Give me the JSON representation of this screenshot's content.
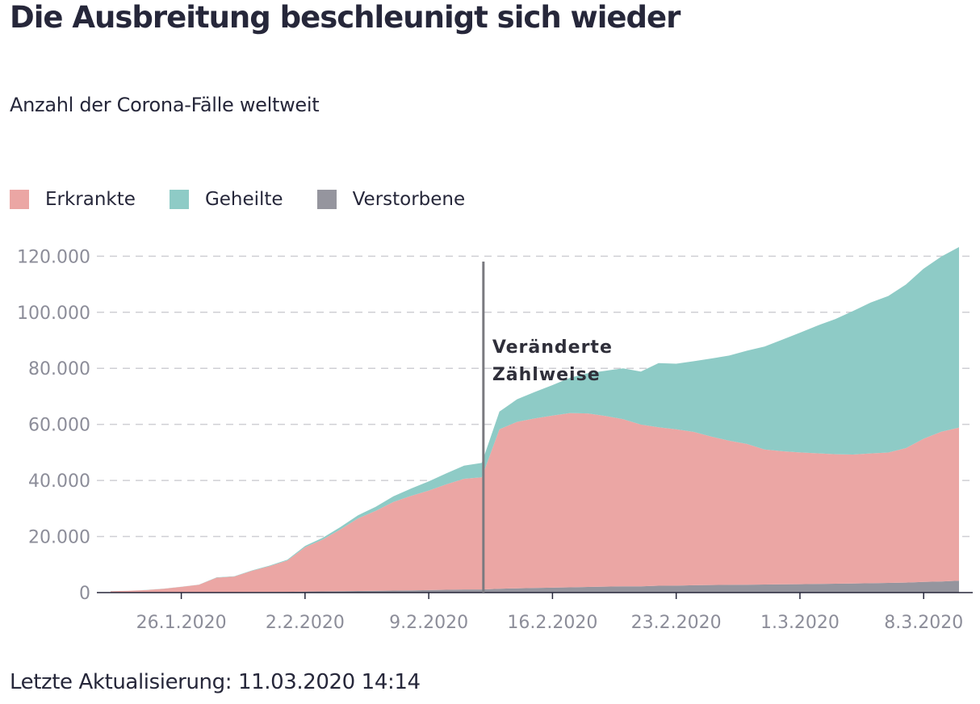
{
  "header": {
    "title": "Die Ausbreitung beschleunigt sich wieder",
    "subtitle": "Anzahl der Corona-Fälle weltweit"
  },
  "legend": [
    {
      "label": "Erkrankte",
      "color": "#eba6a4"
    },
    {
      "label": "Geheilte",
      "color": "#8ecbc6"
    },
    {
      "label": "Verstorbene",
      "color": "#95959e"
    }
  ],
  "footer": {
    "updated": "Letzte Aktualisierung: 11.03.2020 14:14"
  },
  "chart_data": {
    "type": "area",
    "stacked": true,
    "x": [
      "2020-01-22",
      "2020-01-23",
      "2020-01-24",
      "2020-01-25",
      "2020-01-26",
      "2020-01-27",
      "2020-01-28",
      "2020-01-29",
      "2020-01-30",
      "2020-01-31",
      "2020-02-01",
      "2020-02-02",
      "2020-02-03",
      "2020-02-04",
      "2020-02-05",
      "2020-02-06",
      "2020-02-07",
      "2020-02-08",
      "2020-02-09",
      "2020-02-10",
      "2020-02-11",
      "2020-02-12",
      "2020-02-13",
      "2020-02-14",
      "2020-02-15",
      "2020-02-16",
      "2020-02-17",
      "2020-02-18",
      "2020-02-19",
      "2020-02-20",
      "2020-02-21",
      "2020-02-22",
      "2020-02-23",
      "2020-02-24",
      "2020-02-25",
      "2020-02-26",
      "2020-02-27",
      "2020-02-28",
      "2020-02-29",
      "2020-03-01",
      "2020-03-02",
      "2020-03-03",
      "2020-03-04",
      "2020-03-05",
      "2020-03-06",
      "2020-03-07",
      "2020-03-08",
      "2020-03-09",
      "2020-03-10"
    ],
    "series": [
      {
        "name": "Verstorbene",
        "color": "#95959e",
        "values": [
          17,
          18,
          26,
          42,
          56,
          82,
          131,
          133,
          171,
          213,
          259,
          362,
          426,
          492,
          564,
          634,
          719,
          806,
          906,
          1013,
          1113,
          1118,
          1371,
          1523,
          1666,
          1770,
          1868,
          2007,
          2122,
          2247,
          2251,
          2458,
          2469,
          2629,
          2708,
          2770,
          2814,
          2872,
          2941,
          2996,
          3085,
          3160,
          3254,
          3348,
          3460,
          3558,
          3802,
          3988,
          4262
        ]
      },
      {
        "name": "Erkrankte",
        "color": "#eba6a4",
        "values": [
          510,
          605,
          878,
          1322,
          2000,
          2700,
          5200,
          5600,
          7600,
          9200,
          11200,
          15800,
          18500,
          22000,
          25900,
          28500,
          31600,
          33700,
          35500,
          37600,
          39500,
          40000,
          56900,
          59400,
          60500,
          61400,
          62200,
          61900,
          60900,
          59600,
          57700,
          56500,
          55800,
          54700,
          52900,
          51400,
          50200,
          48200,
          47500,
          47000,
          46600,
          46200,
          46000,
          46300,
          46500,
          48000,
          51100,
          53400,
          54600
        ]
      },
      {
        "name": "Geheilte",
        "color": "#8ecbc6",
        "values": [
          28,
          30,
          36,
          39,
          52,
          61,
          107,
          126,
          143,
          222,
          284,
          472,
          623,
          852,
          1124,
          1487,
          2011,
          2616,
          3244,
          3946,
          4683,
          5150,
          6295,
          8058,
          9395,
          10865,
          12583,
          14352,
          16121,
          18177,
          18890,
          22886,
          23394,
          25227,
          27905,
          30384,
          33277,
          36711,
          39782,
          42716,
          45602,
          48228,
          51171,
          53796,
          55865,
          58358,
          60694,
          62494,
          64404
        ]
      }
    ],
    "ylim": [
      0,
      125000
    ],
    "y_ticks": [
      "0",
      "20.000",
      "40.000",
      "60.000",
      "80.000",
      "100.000",
      "120.000"
    ],
    "x_ticks": [
      "26.1.2020",
      "2.2.2020",
      "9.2.2020",
      "16.2.2020",
      "23.2.2020",
      "1.3.2020",
      "8.3.2020"
    ],
    "x_tick_dates": [
      "2020-01-26",
      "2020-02-02",
      "2020-02-09",
      "2020-02-16",
      "2020-02-23",
      "2020-03-01",
      "2020-03-08"
    ],
    "annotation": {
      "date": "2020-02-12",
      "lines": [
        "Veränderte",
        "Zählweise"
      ]
    },
    "grid": "horizontal-dashed"
  }
}
